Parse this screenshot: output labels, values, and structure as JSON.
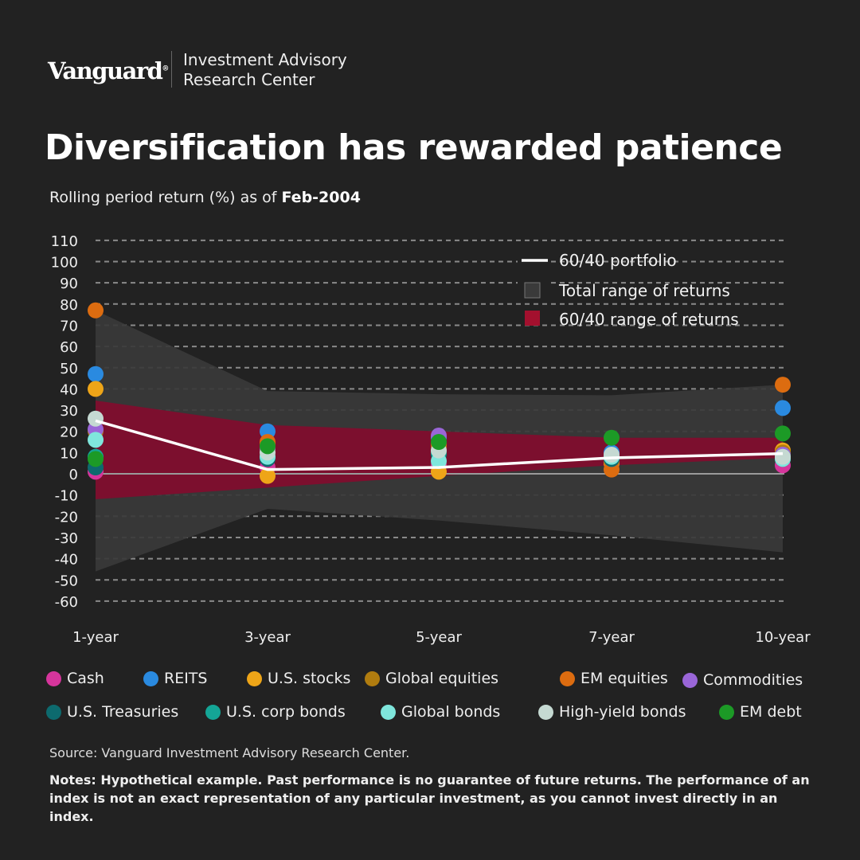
{
  "header": {
    "logo": "Vanguard",
    "org_line1": "Investment Advisory",
    "org_line2": "Research Center"
  },
  "title": "Diversification has rewarded patience",
  "subtitle": {
    "text": "Rolling period return (%) as of",
    "date": "Feb-2004"
  },
  "chart_data": {
    "type": "scatter",
    "ylabel": "",
    "ylim": [
      -60,
      110
    ],
    "yticks": [
      110,
      100,
      90,
      80,
      70,
      60,
      50,
      40,
      30,
      20,
      10,
      0,
      -10,
      -20,
      -30,
      -40,
      -50,
      -60
    ],
    "categories": [
      "1-year",
      "3-year",
      "5-year",
      "7-year",
      "10-year"
    ],
    "grid": "dashed horizontal",
    "legend_placement": "top-right",
    "legend": [
      "60/40 portfolio",
      "Total range of returns",
      "60/40 range of returns"
    ],
    "portfolio_6040": [
      25,
      2,
      3,
      7.5,
      9.5
    ],
    "total_range": {
      "high": [
        77,
        39,
        37.5,
        37,
        42
      ],
      "low": [
        -46,
        -16.5,
        -22,
        -29,
        -37
      ]
    },
    "range_6040": {
      "high": [
        34.5,
        23,
        20,
        17,
        17
      ],
      "low": [
        -12,
        -6.5,
        -1,
        4,
        7.5
      ]
    },
    "series": [
      {
        "name": "Cash",
        "color": "#d6359c",
        "values": [
          1,
          3,
          4,
          5,
          4
        ]
      },
      {
        "name": "REITS",
        "color": "#2a8ae0",
        "values": [
          47,
          20,
          17,
          10,
          31
        ]
      },
      {
        "name": "U.S. stocks",
        "color": "#eea518",
        "values": [
          40,
          -1,
          1,
          5,
          11
        ]
      },
      {
        "name": "Global equities",
        "color": "#b07c0f",
        "values": [
          20,
          14,
          13,
          6,
          10
        ]
      },
      {
        "name": "EM equities",
        "color": "#dc6c10",
        "values": [
          77,
          15,
          14,
          2,
          42
        ]
      },
      {
        "name": "Commodities",
        "color": "#9a66d8",
        "values": [
          21,
          12,
          18,
          7,
          9
        ]
      },
      {
        "name": "U.S. Treasuries",
        "color": "#0d6a6e",
        "values": [
          3,
          7,
          9,
          7,
          7
        ]
      },
      {
        "name": "U.S. corp bonds",
        "color": "#14a596",
        "values": [
          8,
          8,
          10,
          8,
          8
        ]
      },
      {
        "name": "Global bonds",
        "color": "#7fe6dc",
        "values": [
          16,
          8,
          6,
          8,
          7
        ]
      },
      {
        "name": "High-yield bonds",
        "color": "#c5d9d2",
        "values": [
          26,
          10,
          11,
          9,
          8
        ]
      },
      {
        "name": "EM debt",
        "color": "#1c9a26",
        "values": [
          7,
          13,
          15,
          17,
          19
        ]
      }
    ]
  },
  "source": "Source: Vanguard Investment Advisory Research Center.",
  "notes": "Notes: Hypothetical example. Past performance is no guarantee of future returns. The performance of an index is not an exact representation of any particular investment, as you cannot invest directly in an index."
}
